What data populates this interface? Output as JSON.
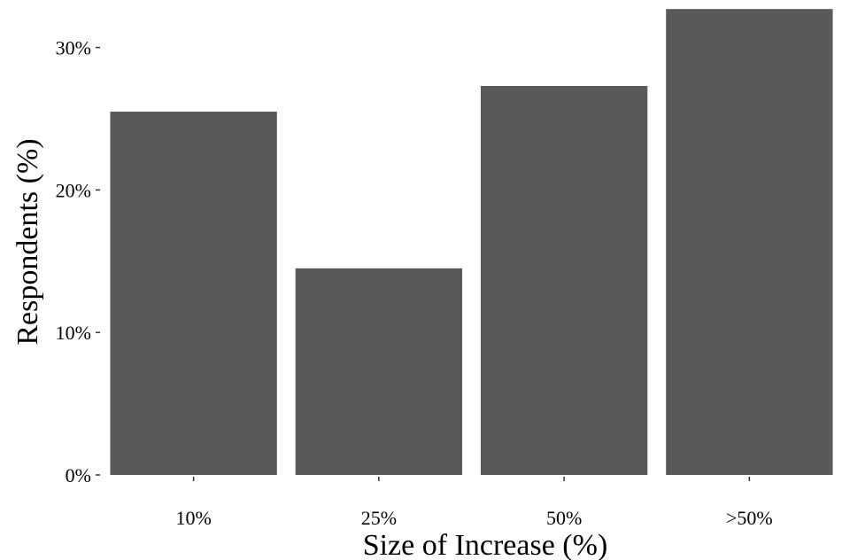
{
  "chart_data": {
    "type": "bar",
    "title": "",
    "xlabel": "Size of Increase (%)",
    "ylabel": "Respondents (%)",
    "categories": [
      "10%",
      "25%",
      "50%",
      ">50%"
    ],
    "values": [
      25.5,
      14.5,
      27.3,
      32.7
    ],
    "ylim": [
      0,
      33
    ],
    "yticks": [
      0,
      10,
      20,
      30
    ],
    "ytick_labels": [
      "0%",
      "10%",
      "20%",
      "30%"
    ],
    "bar_color": "#595959",
    "grid": false,
    "legend": "none"
  }
}
